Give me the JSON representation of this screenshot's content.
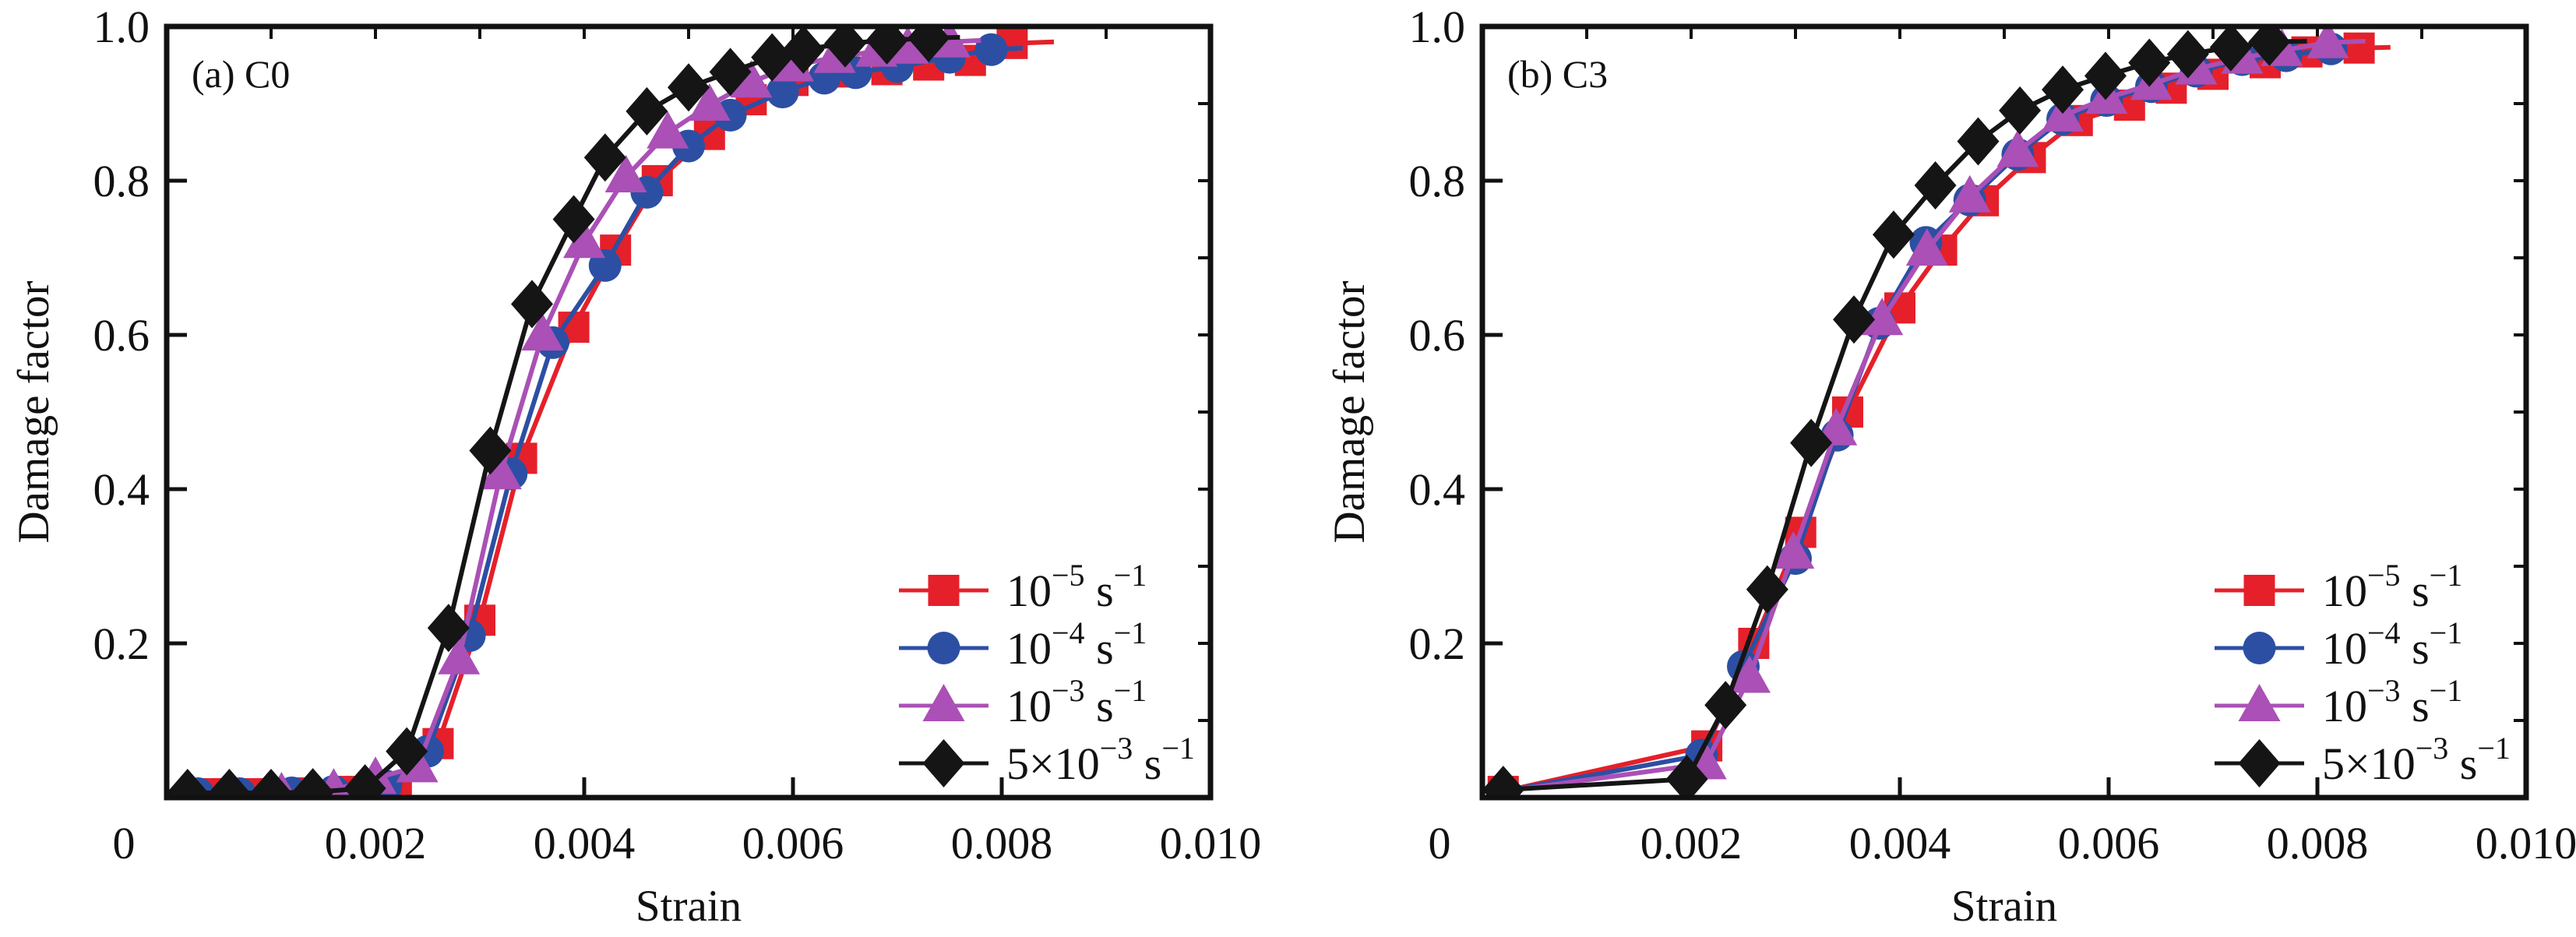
{
  "figure": {
    "background": "#ffffff",
    "frame_color": "#111111",
    "xlabel": "Strain",
    "ylabel": "Damage factor"
  },
  "chart_data": [
    {
      "type": "line",
      "panel_label": "(a) C0",
      "xlabel": "Strain",
      "ylabel": "Damage factor",
      "xlim": [
        0,
        0.01
      ],
      "ylim": [
        0,
        1.0
      ],
      "xticks": [
        0,
        0.002,
        0.004,
        0.006,
        0.008,
        0.01
      ],
      "xtick_labels": [
        "0",
        "0.002",
        "0.004",
        "0.006",
        "0.008",
        "0.010"
      ],
      "yticks": [
        0.2,
        0.4,
        0.6,
        0.8,
        1.0
      ],
      "ytick_labels": [
        "0.2",
        "0.4",
        "0.6",
        "0.8",
        "1.0"
      ],
      "minor_xtick_step": 0.001,
      "minor_ytick_step": 0.1,
      "grid": false,
      "legend_position": "lower right",
      "series": [
        {
          "name_parts": [
            {
              "t": "10"
            },
            {
              "t": "−5",
              "sup": true
            },
            {
              "t": " s"
            },
            {
              "t": "−1",
              "sup": true
            }
          ],
          "marker": "square",
          "color": "#e5202a",
          "points": [
            [
              0.0004,
              0.005
            ],
            [
              0.0009,
              0.005
            ],
            [
              0.0013,
              0.006
            ],
            [
              0.0017,
              0.008
            ],
            [
              0.0022,
              0.012
            ],
            [
              0.0026,
              0.07
            ],
            [
              0.003,
              0.23
            ],
            [
              0.0034,
              0.44
            ],
            [
              0.0039,
              0.61
            ],
            [
              0.0043,
              0.71
            ],
            [
              0.0047,
              0.8
            ],
            [
              0.0052,
              0.86
            ],
            [
              0.0056,
              0.905
            ],
            [
              0.006,
              0.93
            ],
            [
              0.0065,
              0.941
            ],
            [
              0.0069,
              0.944
            ],
            [
              0.0073,
              0.95
            ],
            [
              0.0077,
              0.956
            ],
            [
              0.0081,
              0.978
            ]
          ],
          "tail": [
            0.0085,
            0.98
          ]
        },
        {
          "name_parts": [
            {
              "t": "10"
            },
            {
              "t": "−4",
              "sup": true
            },
            {
              "t": " s"
            },
            {
              "t": "−1",
              "sup": true
            }
          ],
          "marker": "circle",
          "color": "#2c4fa3",
          "points": [
            [
              0.0003,
              0.005
            ],
            [
              0.0007,
              0.005
            ],
            [
              0.0012,
              0.006
            ],
            [
              0.0016,
              0.008
            ],
            [
              0.0021,
              0.015
            ],
            [
              0.0025,
              0.06
            ],
            [
              0.0029,
              0.21
            ],
            [
              0.0033,
              0.42
            ],
            [
              0.0037,
              0.59
            ],
            [
              0.0042,
              0.69
            ],
            [
              0.0046,
              0.785
            ],
            [
              0.005,
              0.845
            ],
            [
              0.0054,
              0.885
            ],
            [
              0.0059,
              0.915
            ],
            [
              0.0063,
              0.933
            ],
            [
              0.0066,
              0.94
            ],
            [
              0.007,
              0.948
            ],
            [
              0.0075,
              0.96
            ],
            [
              0.0079,
              0.97
            ]
          ],
          "tail": [
            0.0082,
            0.972
          ]
        },
        {
          "name_parts": [
            {
              "t": "10"
            },
            {
              "t": "−3",
              "sup": true
            },
            {
              "t": " s"
            },
            {
              "t": "−1",
              "sup": true
            }
          ],
          "marker": "triangle",
          "color": "#aa50b6",
          "points": [
            [
              0.0002,
              0.005
            ],
            [
              0.0006,
              0.005
            ],
            [
              0.0011,
              0.005
            ],
            [
              0.0016,
              0.01
            ],
            [
              0.002,
              0.025
            ],
            [
              0.0024,
              0.04
            ],
            [
              0.0028,
              0.18
            ],
            [
              0.0032,
              0.42
            ],
            [
              0.0036,
              0.6
            ],
            [
              0.004,
              0.72
            ],
            [
              0.0044,
              0.805
            ],
            [
              0.0048,
              0.862
            ],
            [
              0.0052,
              0.898
            ],
            [
              0.0056,
              0.928
            ],
            [
              0.006,
              0.949
            ],
            [
              0.0064,
              0.96
            ],
            [
              0.0068,
              0.968
            ],
            [
              0.0071,
              0.972
            ],
            [
              0.0075,
              0.98
            ]
          ],
          "tail": [
            0.0078,
            0.982
          ]
        },
        {
          "name_parts": [
            {
              "t": "5×10"
            },
            {
              "t": "−3",
              "sup": true
            },
            {
              "t": " s"
            },
            {
              "t": "−1",
              "sup": true
            }
          ],
          "marker": "diamond",
          "color": "#151515",
          "points": [
            [
              0.0002,
              0.006
            ],
            [
              0.0006,
              0.006
            ],
            [
              0.001,
              0.006
            ],
            [
              0.0014,
              0.007
            ],
            [
              0.0019,
              0.012
            ],
            [
              0.0023,
              0.06
            ],
            [
              0.0027,
              0.22
            ],
            [
              0.0031,
              0.45
            ],
            [
              0.0035,
              0.64
            ],
            [
              0.0039,
              0.75
            ],
            [
              0.0042,
              0.83
            ],
            [
              0.0046,
              0.89
            ],
            [
              0.005,
              0.921
            ],
            [
              0.0054,
              0.941
            ],
            [
              0.0058,
              0.96
            ],
            [
              0.0061,
              0.97
            ],
            [
              0.0065,
              0.978
            ],
            [
              0.0069,
              0.982
            ],
            [
              0.0073,
              0.985
            ]
          ],
          "tail": [
            0.0076,
            0.986
          ]
        }
      ]
    },
    {
      "type": "line",
      "panel_label": "(b) C3",
      "xlabel": "Strain",
      "ylabel": "Damage factor",
      "xlim": [
        0,
        0.01
      ],
      "ylim": [
        0,
        1.0
      ],
      "xticks": [
        0,
        0.002,
        0.004,
        0.006,
        0.008,
        0.01
      ],
      "xtick_labels": [
        "0",
        "0.002",
        "0.004",
        "0.006",
        "0.008",
        "0.010"
      ],
      "yticks": [
        0.2,
        0.4,
        0.6,
        0.8,
        1.0
      ],
      "ytick_labels": [
        "0.2",
        "0.4",
        "0.6",
        "0.8",
        "1.0"
      ],
      "minor_xtick_step": 0.001,
      "minor_ytick_step": 0.1,
      "grid": false,
      "legend_position": "lower right",
      "series": [
        {
          "name_parts": [
            {
              "t": "10"
            },
            {
              "t": "−5",
              "sup": true
            },
            {
              "t": " s"
            },
            {
              "t": "−1",
              "sup": true
            }
          ],
          "marker": "square",
          "color": "#e5202a",
          "points": [
            [
              0.0002,
              0.008
            ],
            [
              0.00215,
              0.067
            ],
            [
              0.0026,
              0.2
            ],
            [
              0.00305,
              0.344
            ],
            [
              0.0035,
              0.5
            ],
            [
              0.004,
              0.635
            ],
            [
              0.0044,
              0.71
            ],
            [
              0.0048,
              0.774
            ],
            [
              0.00525,
              0.83
            ],
            [
              0.0057,
              0.878
            ],
            [
              0.0062,
              0.898
            ],
            [
              0.0066,
              0.92
            ],
            [
              0.007,
              0.938
            ],
            [
              0.0075,
              0.953
            ],
            [
              0.0079,
              0.967
            ],
            [
              0.0084,
              0.972
            ]
          ],
          "tail": [
            0.0087,
            0.973
          ]
        },
        {
          "name_parts": [
            {
              "t": "10"
            },
            {
              "t": "−4",
              "sup": true
            },
            {
              "t": " s"
            },
            {
              "t": "−1",
              "sup": true
            }
          ],
          "marker": "circle",
          "color": "#2c4fa3",
          "points": [
            [
              0.0002,
              0.008
            ],
            [
              0.0021,
              0.055
            ],
            [
              0.0025,
              0.17
            ],
            [
              0.003,
              0.31
            ],
            [
              0.0034,
              0.47
            ],
            [
              0.0038,
              0.615
            ],
            [
              0.00425,
              0.72
            ],
            [
              0.00467,
              0.775
            ],
            [
              0.00513,
              0.834
            ],
            [
              0.00556,
              0.88
            ],
            [
              0.00598,
              0.904
            ],
            [
              0.00641,
              0.922
            ],
            [
              0.00684,
              0.942
            ],
            [
              0.00728,
              0.957
            ],
            [
              0.0077,
              0.962
            ],
            [
              0.00813,
              0.971
            ]
          ]
        },
        {
          "name_parts": [
            {
              "t": "10"
            },
            {
              "t": "−3",
              "sup": true
            },
            {
              "t": " s"
            },
            {
              "t": "−1",
              "sup": true
            }
          ],
          "marker": "triangle",
          "color": "#aa50b6",
          "points": [
            [
              0.0002,
              0.008
            ],
            [
              0.00214,
              0.044
            ],
            [
              0.00256,
              0.156
            ],
            [
              0.00298,
              0.317
            ],
            [
              0.00339,
              0.477
            ],
            [
              0.00383,
              0.62
            ],
            [
              0.00426,
              0.71
            ],
            [
              0.00467,
              0.779
            ],
            [
              0.00513,
              0.838
            ],
            [
              0.00556,
              0.884
            ],
            [
              0.00598,
              0.907
            ],
            [
              0.00641,
              0.925
            ],
            [
              0.00684,
              0.945
            ],
            [
              0.00728,
              0.959
            ],
            [
              0.00766,
              0.969
            ],
            [
              0.0081,
              0.979
            ]
          ],
          "tail": [
            0.00846,
            0.981
          ]
        },
        {
          "name_parts": [
            {
              "t": "5×10"
            },
            {
              "t": "−3",
              "sup": true
            },
            {
              "t": " s"
            },
            {
              "t": "−1",
              "sup": true
            }
          ],
          "marker": "diamond",
          "color": "#151515",
          "points": [
            [
              0.0002,
              0.01
            ],
            [
              0.00196,
              0.024
            ],
            [
              0.00233,
              0.12
            ],
            [
              0.00273,
              0.27
            ],
            [
              0.00315,
              0.46
            ],
            [
              0.00356,
              0.62
            ],
            [
              0.00394,
              0.73
            ],
            [
              0.00434,
              0.794
            ],
            [
              0.00475,
              0.851
            ],
            [
              0.00515,
              0.891
            ],
            [
              0.00556,
              0.918
            ],
            [
              0.00597,
              0.936
            ],
            [
              0.00639,
              0.953
            ],
            [
              0.00676,
              0.964
            ],
            [
              0.00717,
              0.973
            ],
            [
              0.00754,
              0.98
            ]
          ],
          "tail": [
            0.0079,
            0.981
          ]
        }
      ]
    }
  ]
}
